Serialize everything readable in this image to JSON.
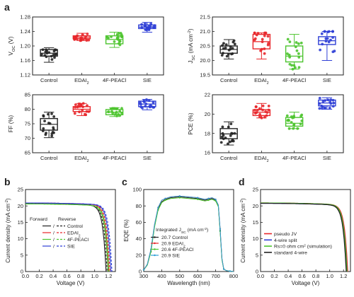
{
  "panel_labels": [
    "a",
    "b",
    "c",
    "d"
  ],
  "chart_data": [
    {
      "type": "box",
      "panel": "a",
      "ylabel": "V_OC (V)",
      "ylim": [
        1.12,
        1.28
      ],
      "yticks": [
        "1.12",
        "1.16",
        "1.20",
        "1.24",
        "1.28"
      ],
      "categories": [
        "Control",
        "EDAI2",
        "4F-PEACl",
        "SIE"
      ],
      "colors": [
        "#222222",
        "#e8262a",
        "#4cc42e",
        "#2f3fd6"
      ],
      "box": [
        {
          "q1": 1.172,
          "median": 1.18,
          "q3": 1.19,
          "min": 1.155,
          "max": 1.195
        },
        {
          "q1": 1.22,
          "median": 1.224,
          "q3": 1.228,
          "min": 1.215,
          "max": 1.235
        },
        {
          "q1": 1.206,
          "median": 1.218,
          "q3": 1.228,
          "min": 1.196,
          "max": 1.238
        },
        {
          "q1": 1.248,
          "median": 1.252,
          "q3": 1.258,
          "min": 1.238,
          "max": 1.265
        }
      ]
    },
    {
      "type": "box",
      "panel": "a",
      "ylabel": "J_SC (mA cm^-2)",
      "ylim": [
        19.5,
        21.5
      ],
      "yticks": [
        "19.5",
        "20.0",
        "20.5",
        "21.0",
        "21.5"
      ],
      "categories": [
        "Control",
        "EDAI2",
        "4F-PEACl",
        "SIE"
      ],
      "colors": [
        "#222222",
        "#e8262a",
        "#4cc42e",
        "#2f3fd6"
      ],
      "box": [
        {
          "q1": 20.25,
          "median": 20.38,
          "q3": 20.5,
          "min": 20.05,
          "max": 20.72
        },
        {
          "q1": 20.4,
          "median": 20.65,
          "q3": 20.9,
          "min": 20.05,
          "max": 20.95
        },
        {
          "q1": 19.95,
          "median": 20.15,
          "q3": 20.5,
          "min": 19.7,
          "max": 20.9
        },
        {
          "q1": 20.55,
          "median": 20.68,
          "q3": 20.82,
          "min": 20.0,
          "max": 21.0
        }
      ]
    },
    {
      "type": "box",
      "panel": "a",
      "ylabel": "FF (%)",
      "ylim": [
        65,
        85
      ],
      "yticks": [
        "65",
        "70",
        "75",
        "80",
        "85"
      ],
      "categories": [
        "Control",
        "EDAI2",
        "4F-PEACl",
        "SIE"
      ],
      "colors": [
        "#222222",
        "#e8262a",
        "#4cc42e",
        "#2f3fd6"
      ],
      "box": [
        {
          "q1": 72.8,
          "median": 74.8,
          "q3": 76.8,
          "min": 70.2,
          "max": 79.0
        },
        {
          "q1": 79.2,
          "median": 80.0,
          "q3": 80.9,
          "min": 77.8,
          "max": 82.0
        },
        {
          "q1": 78.1,
          "median": 79.0,
          "q3": 79.9,
          "min": 77.5,
          "max": 80.5
        },
        {
          "q1": 80.9,
          "median": 81.8,
          "q3": 82.8,
          "min": 79.8,
          "max": 83.4
        }
      ]
    },
    {
      "type": "box",
      "panel": "a",
      "ylabel": "PCE (%)",
      "ylim": [
        16,
        22
      ],
      "yticks": [
        "16",
        "18",
        "20",
        "22"
      ],
      "categories": [
        "Control",
        "EDAI2",
        "4F-PEACl",
        "SIE"
      ],
      "colors": [
        "#222222",
        "#e8262a",
        "#4cc42e",
        "#2f3fd6"
      ],
      "box": [
        {
          "q1": 17.45,
          "median": 17.95,
          "q3": 18.5,
          "min": 16.8,
          "max": 19.2
        },
        {
          "q1": 19.85,
          "median": 20.2,
          "q3": 20.45,
          "min": 19.6,
          "max": 21.1
        },
        {
          "q1": 18.75,
          "median": 19.05,
          "q3": 19.65,
          "min": 18.5,
          "max": 20.2
        },
        {
          "q1": 20.85,
          "median": 21.15,
          "q3": 21.45,
          "min": 20.5,
          "max": 21.7
        }
      ]
    },
    {
      "type": "line",
      "panel": "b",
      "xlabel": "Voltage (V)",
      "ylabel": "Current density (mA cm^-2)",
      "xlim": [
        0.0,
        1.3
      ],
      "ylim": [
        0,
        25
      ],
      "xticks": [
        "0.0",
        "0.2",
        "0.4",
        "0.6",
        "0.8",
        "1.0",
        "1.2"
      ],
      "yticks": [
        "0",
        "5",
        "10",
        "15",
        "20",
        "25"
      ],
      "legend_header": [
        "Forward",
        "Reverse"
      ],
      "series": [
        {
          "name": "Control",
          "color": "#222222",
          "jsc": 20.7,
          "voc": 1.18,
          "knee": 0.9
        },
        {
          "name": "EDAI2",
          "color": "#e8262a",
          "jsc": 20.9,
          "voc": 1.22,
          "knee": 0.95
        },
        {
          "name": "4F-PEACl",
          "color": "#4cc42e",
          "jsc": 20.6,
          "voc": 1.21,
          "knee": 0.94
        },
        {
          "name": "SIE",
          "color": "#2f3fd6",
          "jsc": 20.9,
          "voc": 1.25,
          "knee": 0.99
        }
      ]
    },
    {
      "type": "line",
      "panel": "c",
      "xlabel": "Wavelength (nm)",
      "ylabel": "EQE (%)",
      "xlim": [
        300,
        800
      ],
      "ylim": [
        0,
        100
      ],
      "xticks": [
        "300",
        "400",
        "500",
        "600",
        "700",
        "800"
      ],
      "yticks": [
        "0",
        "20",
        "40",
        "60",
        "80",
        "100"
      ],
      "legend_title": "Integrated J_SC (mA cm^-2)",
      "x": [
        300,
        320,
        340,
        360,
        380,
        400,
        420,
        450,
        500,
        550,
        600,
        640,
        660,
        680,
        700,
        715,
        725,
        735,
        745,
        760,
        780,
        800
      ],
      "series": [
        {
          "name": "20.7 Control",
          "color": "#222222",
          "values": [
            2,
            8,
            25,
            55,
            76,
            85,
            88,
            90,
            91,
            90,
            89,
            87,
            88,
            89,
            87,
            80,
            50,
            15,
            3,
            1,
            0.5,
            0
          ]
        },
        {
          "name": "20.9 EDAI2",
          "color": "#e8262a",
          "values": [
            2,
            9,
            27,
            57,
            78,
            87,
            89,
            91,
            92,
            91,
            90,
            88,
            89,
            90,
            88,
            81,
            52,
            16,
            3,
            1,
            0.5,
            0
          ]
        },
        {
          "name": "20.6 4F-PEACl",
          "color": "#4cc42e",
          "values": [
            2,
            8,
            24,
            54,
            75,
            84,
            87,
            89,
            90,
            89,
            88,
            86,
            87,
            88,
            86,
            79,
            49,
            14,
            3,
            1,
            0.5,
            0
          ]
        },
        {
          "name": "20.9 SIE",
          "color": "#2f9fd6",
          "values": [
            2,
            9,
            27,
            57,
            78,
            87,
            89,
            91,
            92,
            91,
            90,
            88,
            89,
            90,
            88,
            81,
            52,
            16,
            3,
            1,
            0.5,
            0
          ]
        }
      ]
    },
    {
      "type": "line",
      "panel": "d",
      "xlabel": "Voltage (V)",
      "ylabel": "Current density (mA cm^-2)",
      "xlim": [
        0.0,
        1.3
      ],
      "ylim": [
        0,
        25
      ],
      "xticks": [
        "0.0",
        "0.2",
        "0.4",
        "0.6",
        "0.8",
        "1.0",
        "1.2"
      ],
      "yticks": [
        "0",
        "5",
        "10",
        "15",
        "20",
        "25"
      ],
      "series": [
        {
          "name": "pseudo JV",
          "color": "#e8262a",
          "jsc": 20.9,
          "voc": 1.26,
          "knee": 1.02
        },
        {
          "name": "4-wire split",
          "color": "#2f3fd6",
          "jsc": 20.8,
          "voc": 1.25,
          "knee": 1.0
        },
        {
          "name": "Rs=0 ohm cm2 (simulation)",
          "color": "#4cc42e",
          "jsc": 20.9,
          "voc": 1.25,
          "knee": 1.01
        },
        {
          "name": "standard 4-wire",
          "color": "#222222",
          "jsc": 20.8,
          "voc": 1.24,
          "knee": 0.97
        }
      ]
    }
  ]
}
